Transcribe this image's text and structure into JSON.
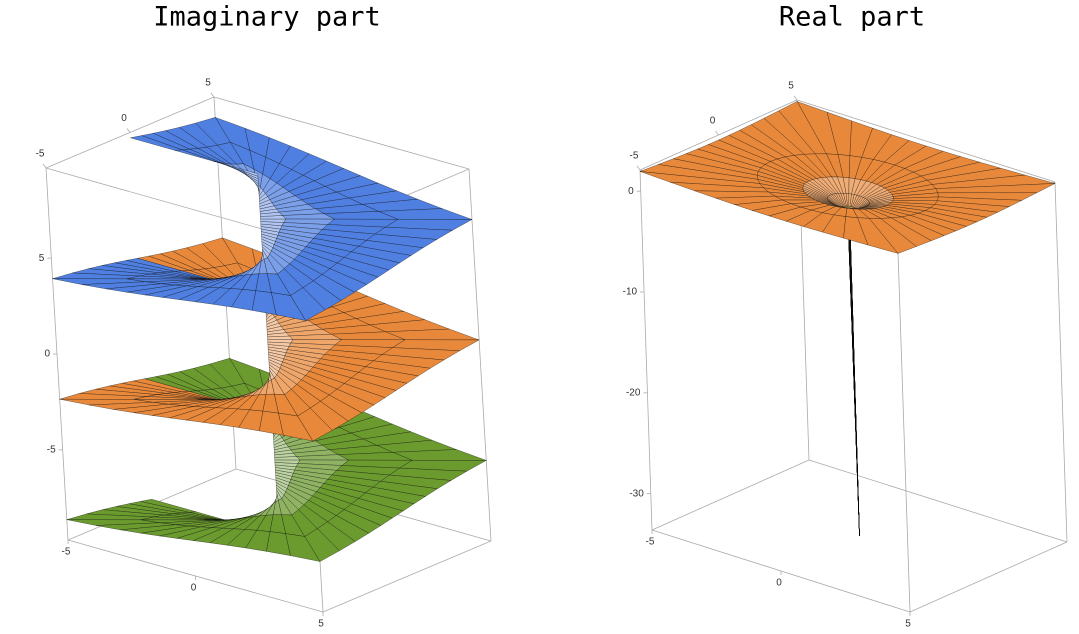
{
  "chart_data": [
    {
      "type": "surface3d",
      "title": "Imaginary part",
      "xlim": [
        -5,
        5
      ],
      "ylim": [
        -5,
        5
      ],
      "zlim": [
        -9.7,
        9.7
      ],
      "xticks": [
        -5,
        0,
        5
      ],
      "yticks": [
        -5,
        0,
        5
      ],
      "zticks": [
        -5,
        0,
        5
      ],
      "colors": [
        "#6b9a2f",
        "#e8883a",
        "#4f7fe0"
      ]
    },
    {
      "type": "surface3d",
      "title": "Real part",
      "xlim": [
        -5,
        5
      ],
      "ylim": [
        -5,
        5
      ],
      "zlim": [
        -33.6,
        2.1
      ],
      "xticks": [
        -5,
        0,
        5
      ],
      "yticks": [
        -5,
        0,
        5
      ],
      "zticks": [
        -30,
        -20,
        -10,
        0
      ],
      "color": "#e8883a"
    }
  ]
}
